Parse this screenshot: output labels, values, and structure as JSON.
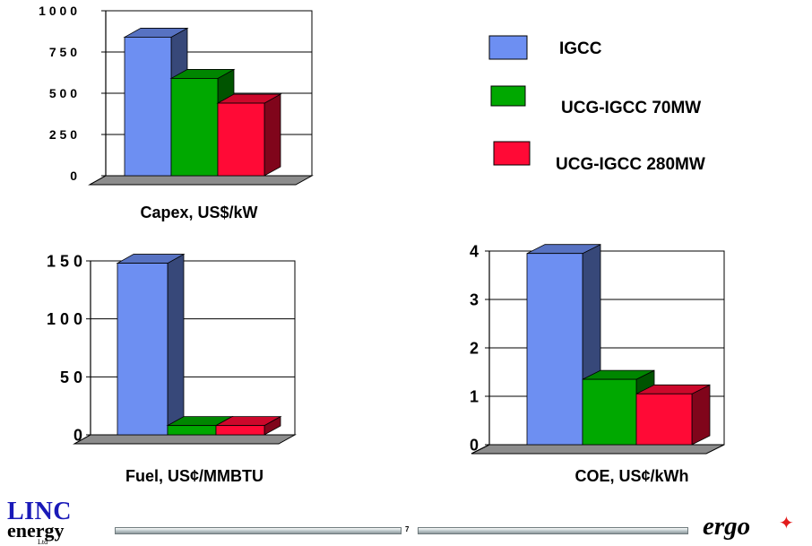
{
  "legend": [
    {
      "label": "IGCC",
      "color": "#6d8ff2"
    },
    {
      "label": "UCG-IGCC 70MW",
      "color": "#00a800"
    },
    {
      "label": "UCG-IGCC 280MW",
      "color": "#ff0a36"
    }
  ],
  "chart_data": [
    {
      "type": "bar",
      "xlabel": "Capex, US$/kW",
      "categories": [
        "IGCC",
        "UCG-IGCC 70MW",
        "UCG-IGCC 280MW"
      ],
      "values": [
        840,
        590,
        440
      ],
      "ylim": [
        0,
        1000
      ],
      "y_ticks": [
        0,
        250,
        500,
        750,
        1000
      ],
      "y_tick_labels": [
        "0",
        "2 5 0",
        "5 0 0",
        "7 5 0",
        "1 0 0 0"
      ],
      "grid": true
    },
    {
      "type": "bar",
      "xlabel": "Fuel, US¢/MMBTU",
      "categories": [
        "IGCC",
        "UCG-IGCC 70MW",
        "UCG-IGCC 280MW"
      ],
      "values": [
        148,
        8,
        8
      ],
      "ylim": [
        0,
        150
      ],
      "y_ticks": [
        0,
        50,
        100,
        150
      ],
      "y_tick_labels": [
        "0",
        "5 0",
        "1 0 0",
        "1 5 0"
      ],
      "grid": true
    },
    {
      "type": "bar",
      "xlabel": "COE, US¢/kWh",
      "categories": [
        "IGCC",
        "UCG-IGCC 70MW",
        "UCG-IGCC 280MW"
      ],
      "values": [
        3.95,
        1.35,
        1.05
      ],
      "ylim": [
        0,
        4
      ],
      "y_ticks": [
        0,
        1,
        2,
        3,
        4
      ],
      "y_tick_labels": [
        "0",
        "1",
        "2",
        "3",
        "4"
      ],
      "grid": true
    }
  ],
  "footer": {
    "page_number": "7",
    "left_logo_top": "LINC",
    "left_logo_bottom": "energy",
    "left_logo_small": "Ltd",
    "right_logo": "ergo"
  }
}
